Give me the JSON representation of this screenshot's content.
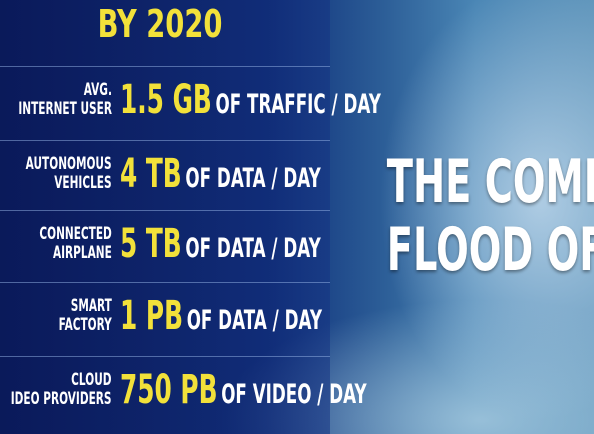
{
  "header": {
    "title": "BY 2020"
  },
  "rows": [
    {
      "label": [
        "AVG.",
        "INTERNET USER"
      ],
      "amount": "1.5 GB",
      "unit": "OF TRAFFIC / DAY"
    },
    {
      "label": [
        "AUTONOMOUS",
        "VEHICLES"
      ],
      "amount": "4 TB",
      "unit": "OF DATA / DAY"
    },
    {
      "label": [
        "CONNECTED",
        "AIRPLANE"
      ],
      "amount": "5 TB",
      "unit": "OF DATA / DAY"
    },
    {
      "label": [
        "SMART",
        "FACTORY"
      ],
      "amount": "1 PB",
      "unit": "OF DATA / DAY"
    },
    {
      "label": [
        "CLOUD",
        "IDEO PROVIDERS"
      ],
      "amount": "750 PB",
      "unit": "OF VIDEO / DAY"
    }
  ],
  "headline": [
    "THE COMING",
    "FLOOD OF DATA"
  ]
}
